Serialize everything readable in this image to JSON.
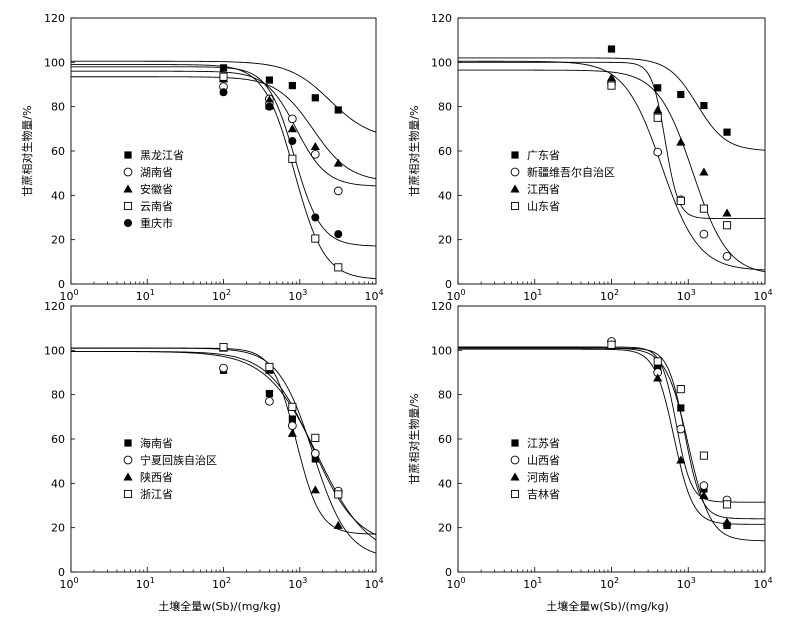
{
  "chart_data": [
    {
      "type": "scatter",
      "ylabel": "甘蔗相对生物量/%",
      "xlabel": "",
      "xscale": "log",
      "xlim": [
        1,
        10000
      ],
      "ylim": [
        0,
        120
      ],
      "yticks": [
        "0",
        "20",
        "40",
        "60",
        "80",
        "100",
        "120"
      ],
      "xticks": [
        {
          "base": "10",
          "exp": "0"
        },
        {
          "base": "10",
          "exp": "1"
        },
        {
          "base": "10",
          "exp": "2"
        },
        {
          "base": "10",
          "exp": "3"
        },
        {
          "base": "10",
          "exp": "4"
        }
      ],
      "legend_position": "left",
      "series": [
        {
          "name": "黑龙江省",
          "marker": "square-filled",
          "x": [
            100,
            400,
            800,
            1600,
            3200
          ],
          "y": [
            97.5,
            92,
            89.5,
            84,
            78.5
          ]
        },
        {
          "name": "湖南省",
          "marker": "circle-open",
          "x": [
            100,
            400,
            800,
            1600,
            3200
          ],
          "y": [
            89,
            83.5,
            74.5,
            58.5,
            42
          ]
        },
        {
          "name": "安徽省",
          "marker": "triangle-filled",
          "x": [
            100,
            400,
            800,
            1600,
            3200
          ],
          "y": [
            92.5,
            83,
            70,
            62,
            54.5
          ]
        },
        {
          "name": "云南省",
          "marker": "square-open",
          "x": [
            100,
            400,
            800,
            1600,
            3200
          ],
          "y": [
            93.5,
            80.5,
            56.5,
            20.5,
            7.5
          ]
        },
        {
          "name": "重庆市",
          "marker": "circle-filled",
          "x": [
            100,
            400,
            800,
            1600,
            3200
          ],
          "y": [
            86.5,
            80,
            64.5,
            30,
            22.5
          ]
        }
      ]
    },
    {
      "type": "scatter",
      "ylabel": "甘蔗相对生物量/%",
      "xlabel": "",
      "xscale": "log",
      "xlim": [
        1,
        10000
      ],
      "ylim": [
        0,
        120
      ],
      "yticks": [
        "0",
        "20",
        "40",
        "60",
        "80",
        "100",
        "120"
      ],
      "xticks": [
        {
          "base": "10",
          "exp": "0"
        },
        {
          "base": "10",
          "exp": "1"
        },
        {
          "base": "10",
          "exp": "2"
        },
        {
          "base": "10",
          "exp": "3"
        },
        {
          "base": "10",
          "exp": "4"
        }
      ],
      "legend_position": "left",
      "series": [
        {
          "name": "广东省",
          "marker": "square-filled",
          "x": [
            100,
            400,
            800,
            1600,
            3200
          ],
          "y": [
            106,
            88.5,
            85.5,
            80.5,
            68.5
          ]
        },
        {
          "name": "新疆维吾尔自治区",
          "marker": "circle-open",
          "x": [
            100,
            400,
            800,
            1600,
            3200
          ],
          "y": [
            90.5,
            59.5,
            38,
            22.5,
            12.5
          ]
        },
        {
          "name": "江西省",
          "marker": "triangle-filled",
          "x": [
            100,
            400,
            800,
            1600,
            3200
          ],
          "y": [
            93,
            78.5,
            64,
            50.5,
            32
          ]
        },
        {
          "name": "山东省",
          "marker": "square-open",
          "x": [
            100,
            400,
            800,
            1600,
            3200
          ],
          "y": [
            89.5,
            75,
            37.5,
            34,
            26.5
          ]
        }
      ]
    },
    {
      "type": "scatter",
      "ylabel": "",
      "xlabel": "土壤全量w(Sb)/(mg/kg)",
      "xscale": "log",
      "xlim": [
        1,
        10000
      ],
      "ylim": [
        0,
        120
      ],
      "yticks": [
        "0",
        "20",
        "40",
        "60",
        "80",
        "100",
        "120"
      ],
      "xticks": [
        {
          "base": "10",
          "exp": "0"
        },
        {
          "base": "10",
          "exp": "1"
        },
        {
          "base": "10",
          "exp": "2"
        },
        {
          "base": "10",
          "exp": "3"
        },
        {
          "base": "10",
          "exp": "4"
        }
      ],
      "legend_position": "left",
      "series": [
        {
          "name": "海南省",
          "marker": "square-filled",
          "x": [
            100,
            400,
            800,
            1600,
            3200
          ],
          "y": [
            91,
            80.5,
            69,
            51,
            35.5
          ]
        },
        {
          "name": "宁夏回族自治区",
          "marker": "circle-open",
          "x": [
            100,
            400,
            800,
            1600,
            3200
          ],
          "y": [
            92,
            77,
            66,
            53.5,
            36.5
          ]
        },
        {
          "name": "陕西省",
          "marker": "triangle-filled",
          "x": [
            100,
            400,
            800,
            1600,
            3200
          ],
          "y": [
            101,
            91,
            62.5,
            37,
            21
          ]
        },
        {
          "name": "浙江省",
          "marker": "square-open",
          "x": [
            100,
            400,
            800,
            1600,
            3200
          ],
          "y": [
            101.5,
            92.5,
            74.5,
            60.5,
            35
          ]
        }
      ]
    },
    {
      "type": "scatter",
      "ylabel": "甘蔗相对生物量/%",
      "xlabel": "土壤全量w(Sb)/(mg/kg)",
      "xscale": "log",
      "xlim": [
        1,
        10000
      ],
      "ylim": [
        0,
        120
      ],
      "yticks": [
        "0",
        "20",
        "40",
        "60",
        "80",
        "100",
        "120"
      ],
      "xticks": [
        {
          "base": "10",
          "exp": "0"
        },
        {
          "base": "10",
          "exp": "1"
        },
        {
          "base": "10",
          "exp": "2"
        },
        {
          "base": "10",
          "exp": "3"
        },
        {
          "base": "10",
          "exp": "4"
        }
      ],
      "legend_position": "left",
      "series": [
        {
          "name": "江苏省",
          "marker": "square-filled",
          "x": [
            100,
            400,
            800,
            1600,
            3200
          ],
          "y": [
            102,
            92,
            74,
            37.5,
            21
          ]
        },
        {
          "name": "山西省",
          "marker": "circle-open",
          "x": [
            100,
            400,
            800,
            1600,
            3200
          ],
          "y": [
            104,
            90,
            64.5,
            39,
            32.5
          ]
        },
        {
          "name": "河南省",
          "marker": "triangle-filled",
          "x": [
            100,
            400,
            800,
            1600,
            3200
          ],
          "y": [
            102.5,
            87.5,
            50.5,
            34.5,
            22.5
          ]
        },
        {
          "name": "吉林省",
          "marker": "square-open",
          "x": [
            100,
            400,
            800,
            1600,
            3200
          ],
          "y": [
            102.5,
            95,
            82.5,
            52.5,
            30.5
          ]
        }
      ]
    }
  ]
}
